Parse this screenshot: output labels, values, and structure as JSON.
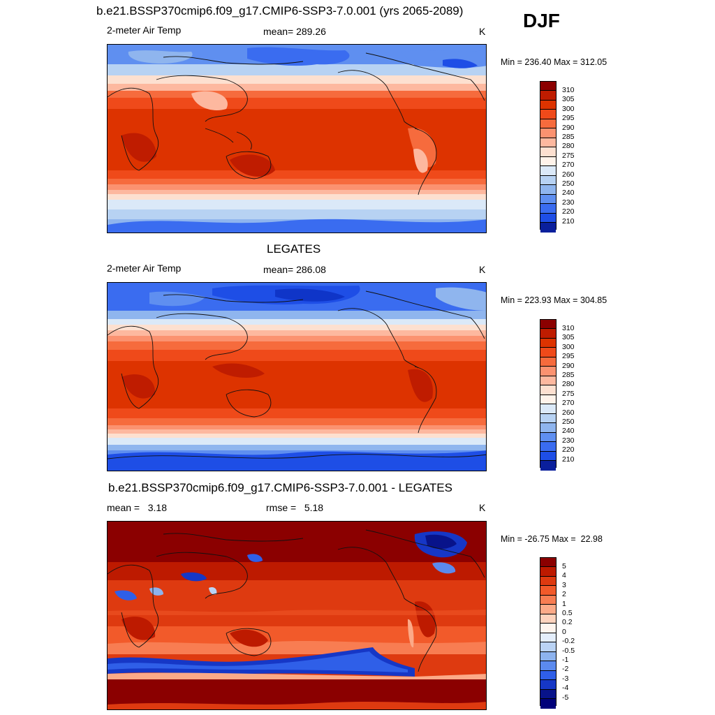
{
  "season": "DJF",
  "panels": [
    {
      "title": "b.e21.BSSP370cmip6.f09_g17.CMIP6-SSP3-7.0.001 (yrs 2065-2089)",
      "variable": "2-meter Air Temp",
      "mean_label": "mean= 289.26",
      "units": "K",
      "minmax": "Min = 236.40 Max = 312.05",
      "colorbar_labels": [
        "310",
        "305",
        "300",
        "295",
        "290",
        "285",
        "280",
        "275",
        "270",
        "260",
        "250",
        "240",
        "230",
        "220",
        "210"
      ]
    },
    {
      "title": "LEGATES",
      "variable": "2-meter Air Temp",
      "mean_label": "mean= 286.08",
      "units": "K",
      "minmax": "Min = 223.93 Max = 304.85",
      "colorbar_labels": [
        "310",
        "305",
        "300",
        "295",
        "290",
        "285",
        "280",
        "275",
        "270",
        "260",
        "250",
        "240",
        "230",
        "220",
        "210"
      ]
    },
    {
      "title": "b.e21.BSSP370cmip6.f09_g17.CMIP6-SSP3-7.0.001 - LEGATES",
      "mean_label": "mean =   3.18",
      "rmse_label": "rmse =   5.18",
      "units": "K",
      "minmax": "Min = -26.75 Max =  22.98",
      "colorbar_labels": [
        "5",
        "4",
        "3",
        "2",
        "1",
        "0.5",
        "0.2",
        "0",
        "-0.2",
        "-0.5",
        "-1",
        "-2",
        "-3",
        "-4",
        "-5"
      ]
    }
  ],
  "colors": {
    "temp_scale": [
      "#8b0000",
      "#bf1c00",
      "#dd3300",
      "#ef4a1a",
      "#f66b3d",
      "#fb9270",
      "#fdb89f",
      "#fde0d0",
      "#fff3ea",
      "#dbe9f8",
      "#b7d2f3",
      "#8fb5ee",
      "#5f8ff0",
      "#3a6cf0",
      "#1e4ee6",
      "#0f35c8",
      "#0a1f9c",
      "#050f78"
    ],
    "diff_scale": [
      "#8b0000",
      "#bd1a00",
      "#de3a10",
      "#f25a2a",
      "#f87d52",
      "#fcaa88",
      "#fed3bd",
      "#fff5ee",
      "#e4eefb",
      "#bad3f4",
      "#8db3ee",
      "#5b8aee",
      "#2f5fe8",
      "#1637c6",
      "#08138a",
      "#00007a"
    ]
  }
}
